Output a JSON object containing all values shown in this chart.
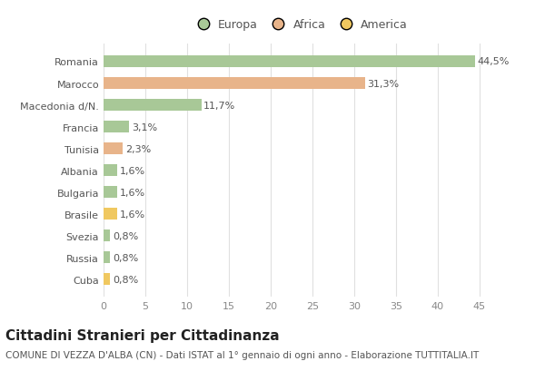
{
  "categories": [
    "Romania",
    "Marocco",
    "Macedonia d/N.",
    "Francia",
    "Tunisia",
    "Albania",
    "Bulgaria",
    "Brasile",
    "Svezia",
    "Russia",
    "Cuba"
  ],
  "values": [
    44.5,
    31.3,
    11.7,
    3.1,
    2.3,
    1.6,
    1.6,
    1.6,
    0.8,
    0.8,
    0.8
  ],
  "labels": [
    "44,5%",
    "31,3%",
    "11,7%",
    "3,1%",
    "2,3%",
    "1,6%",
    "1,6%",
    "1,6%",
    "0,8%",
    "0,8%",
    "0,8%"
  ],
  "colors": [
    "#a8c897",
    "#e8b48a",
    "#a8c897",
    "#a8c897",
    "#e8b48a",
    "#a8c897",
    "#a8c897",
    "#f0c860",
    "#a8c897",
    "#a8c897",
    "#f0c860"
  ],
  "legend_labels": [
    "Europa",
    "Africa",
    "America"
  ],
  "legend_colors": [
    "#a8c897",
    "#e8b48a",
    "#f0c860"
  ],
  "xlim": [
    0,
    47
  ],
  "xticks": [
    0,
    5,
    10,
    15,
    20,
    25,
    30,
    35,
    40,
    45
  ],
  "title": "Cittadini Stranieri per Cittadinanza",
  "subtitle": "COMUNE DI VEZZA D'ALBA (CN) - Dati ISTAT al 1° gennaio di ogni anno - Elaborazione TUTTITALIA.IT",
  "bg_color": "#ffffff",
  "grid_color": "#e0e0e0",
  "bar_height": 0.55,
  "title_fontsize": 11,
  "subtitle_fontsize": 7.5,
  "label_fontsize": 8,
  "tick_fontsize": 8,
  "legend_fontsize": 9
}
